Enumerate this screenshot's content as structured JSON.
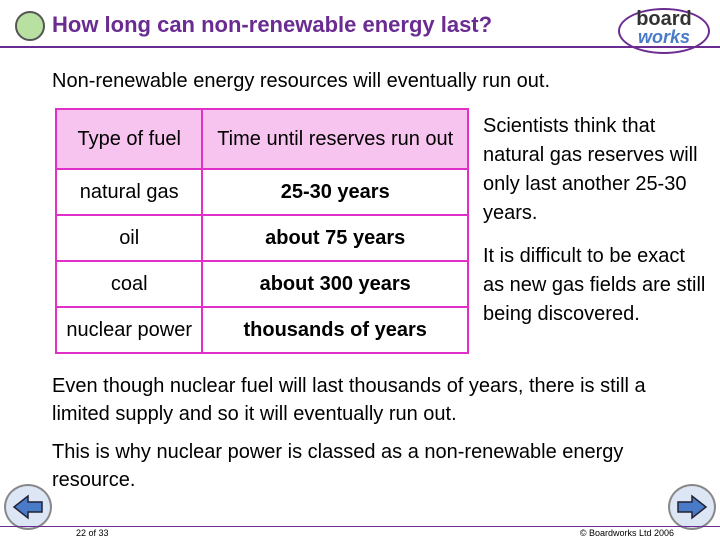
{
  "header": {
    "title": "How long can non-renewable energy last?",
    "logo": [
      "board",
      "works"
    ]
  },
  "intro": "Non-renewable energy resources will eventually run out.",
  "table": {
    "columns": [
      "Type of fuel",
      "Time until reserves run out"
    ],
    "rows": [
      [
        "natural gas",
        "25-30 years"
      ],
      [
        "oil",
        "about 75 years"
      ],
      [
        "coal",
        "about 300 years"
      ],
      [
        "nuclear power",
        "thousands of years"
      ]
    ]
  },
  "side_notes": [
    "Scientists think that natural gas reserves will only last another 25-30 years.",
    "It is difficult to be exact as new gas fields are still being discovered."
  ],
  "paragraphs": [
    "Even though nuclear fuel will last thousands of years, there is still a limited supply and so it will eventually run out.",
    "This is why nuclear power is classed as a non-renewable energy resource."
  ],
  "footer": {
    "page": "22 of 33",
    "copyright": "© Boardworks Ltd 2006"
  }
}
